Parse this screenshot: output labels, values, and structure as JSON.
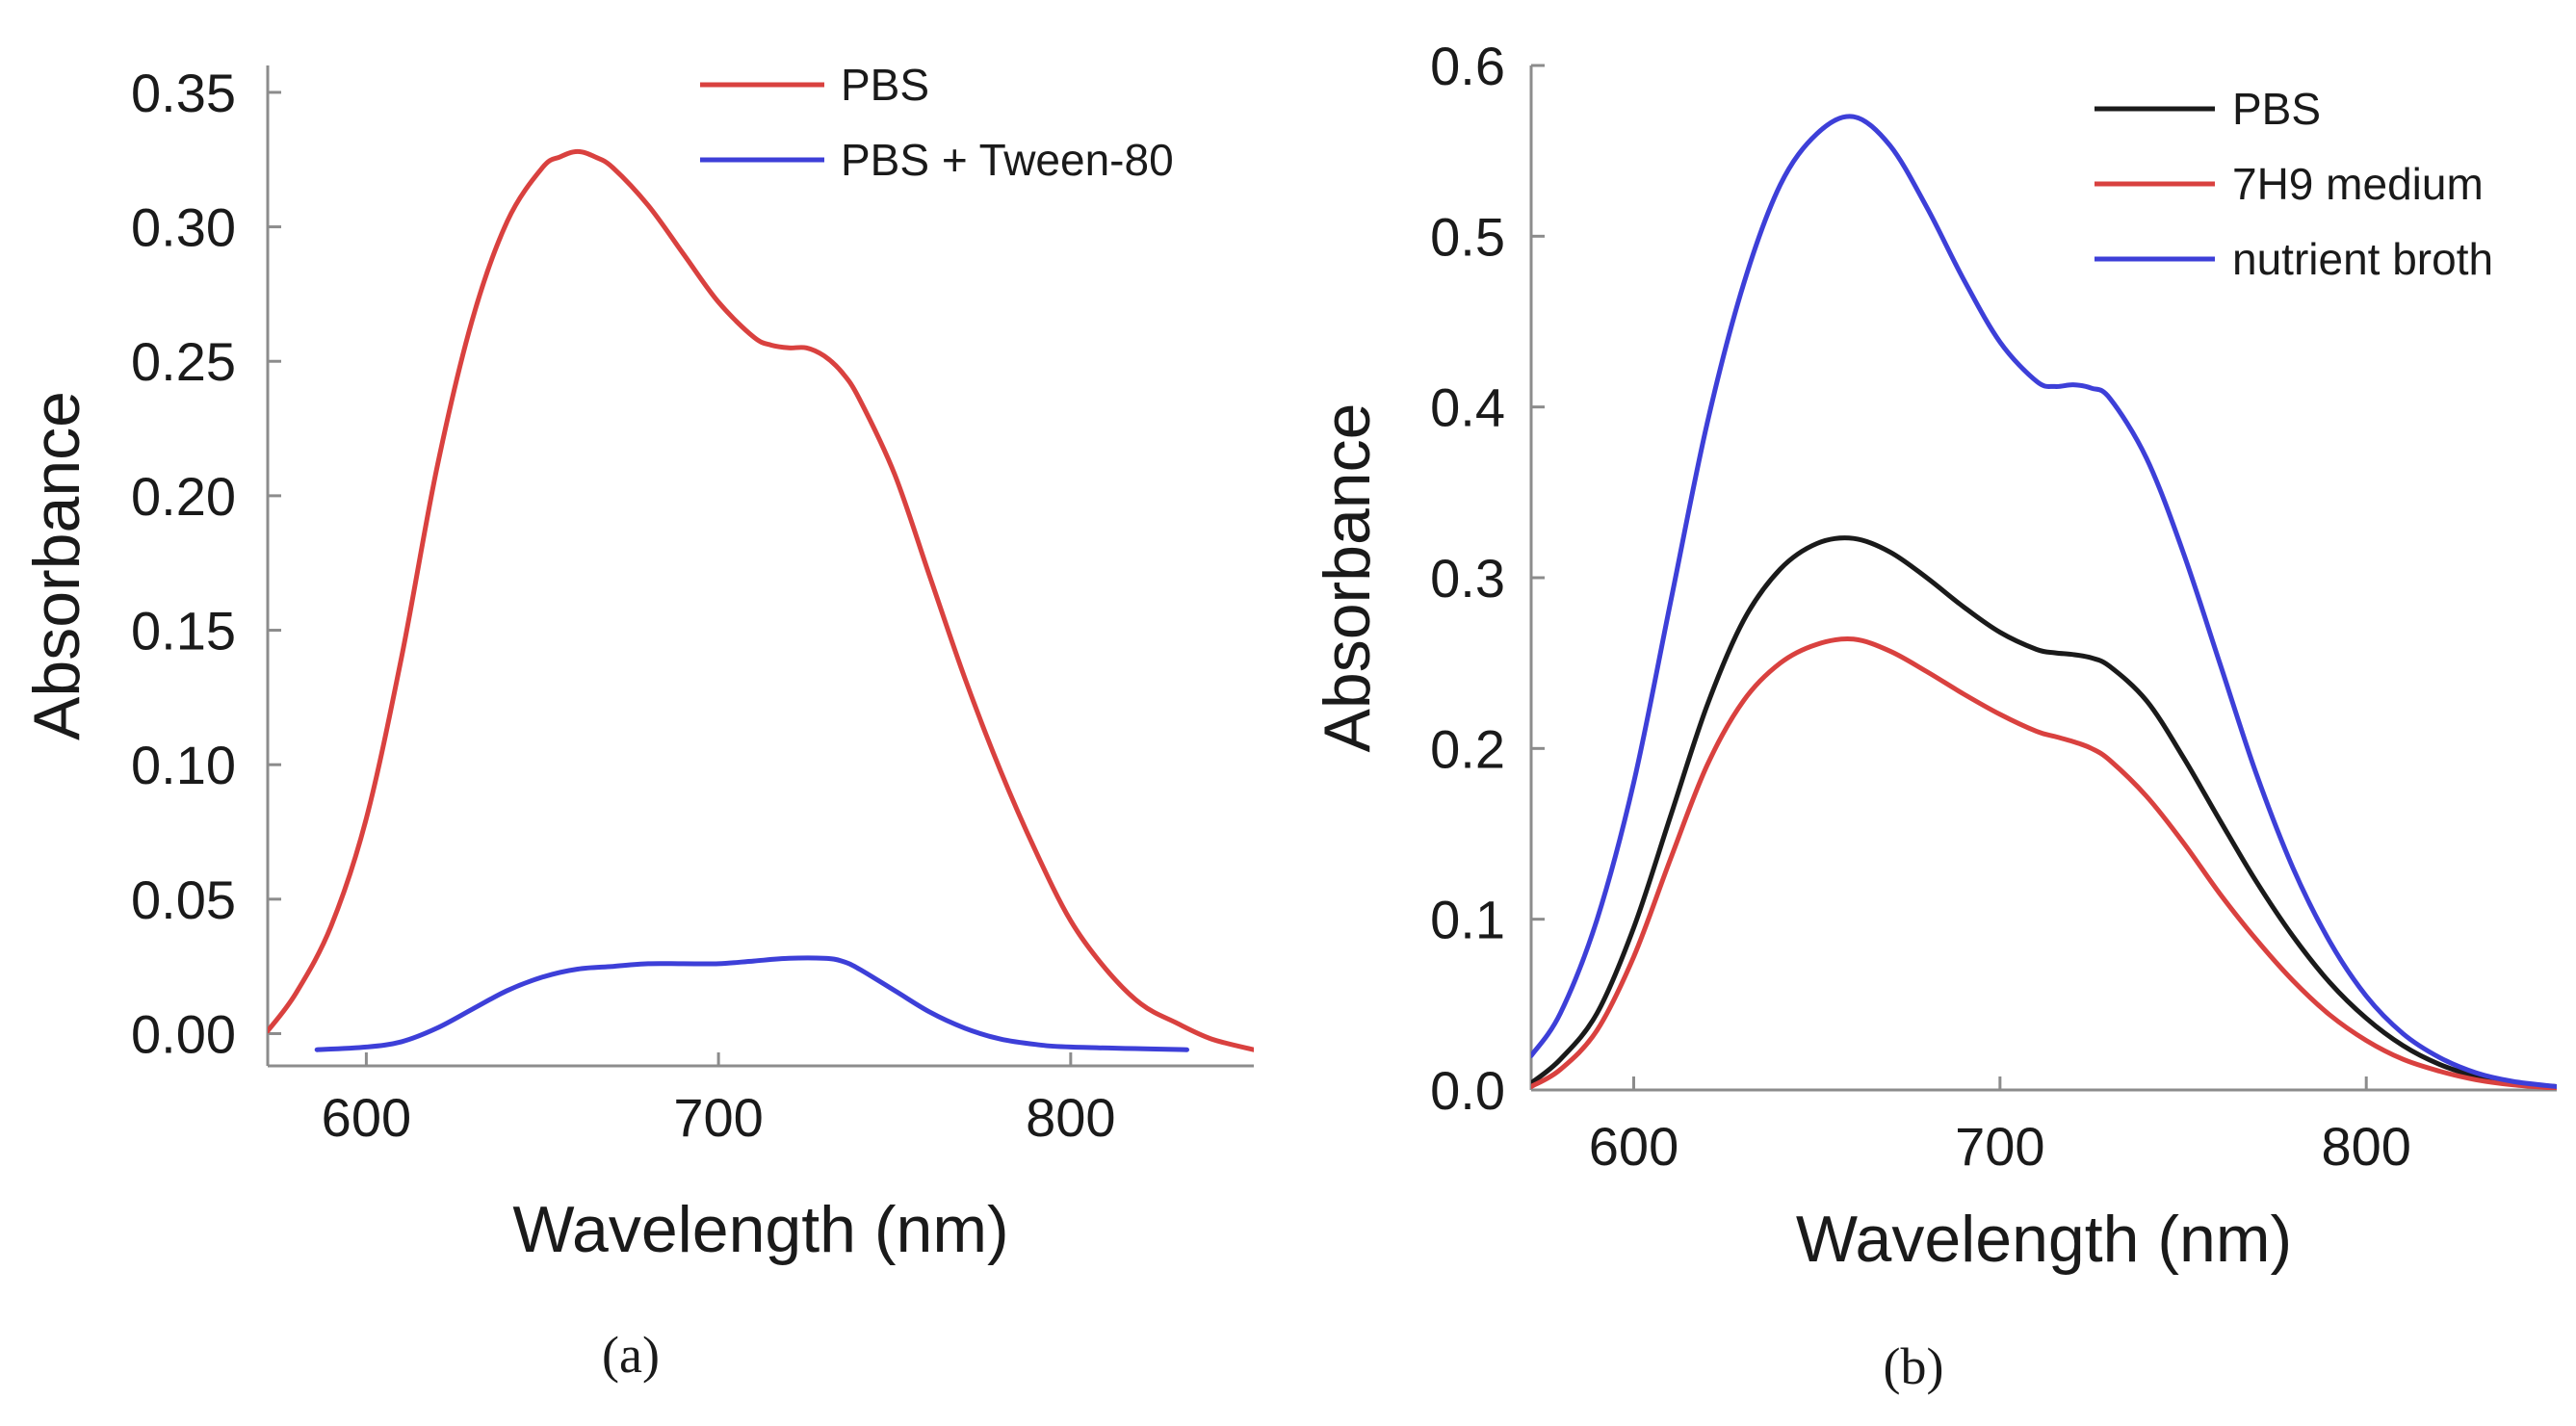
{
  "chart_data": [
    {
      "type": "line",
      "panel_label": "(a)",
      "xlabel": "Wavelength (nm)",
      "ylabel": "Absorbance",
      "xlim": [
        572,
        852
      ],
      "ylim": [
        -0.012,
        0.36
      ],
      "x_ticks": [
        600,
        700,
        800
      ],
      "y_ticks": [
        0.0,
        0.05,
        0.1,
        0.15,
        0.2,
        0.25,
        0.3,
        0.35
      ],
      "y_tick_labels": [
        "0.00",
        "0.05",
        "0.10",
        "0.15",
        "0.20",
        "0.25",
        "0.30",
        "0.35"
      ],
      "legend_position": "top-right",
      "series": [
        {
          "name": "PBS",
          "color": "#d9413f",
          "x": [
            572,
            580,
            590,
            600,
            610,
            620,
            630,
            640,
            650,
            655,
            660,
            665,
            670,
            680,
            690,
            700,
            710,
            715,
            720,
            725,
            730,
            735,
            740,
            750,
            760,
            770,
            780,
            790,
            800,
            810,
            820,
            830,
            840,
            852
          ],
          "y": [
            0.001,
            0.015,
            0.04,
            0.08,
            0.14,
            0.21,
            0.265,
            0.302,
            0.322,
            0.326,
            0.328,
            0.326,
            0.322,
            0.308,
            0.29,
            0.272,
            0.259,
            0.256,
            0.255,
            0.255,
            0.252,
            0.246,
            0.236,
            0.208,
            0.17,
            0.132,
            0.098,
            0.068,
            0.042,
            0.024,
            0.011,
            0.004,
            -0.002,
            -0.006
          ]
        },
        {
          "name": "PBS + Tween-80",
          "color": "#3d3fd8",
          "x": [
            586,
            600,
            610,
            620,
            630,
            640,
            650,
            660,
            670,
            680,
            690,
            700,
            710,
            720,
            730,
            735,
            740,
            750,
            760,
            770,
            780,
            790,
            800,
            833
          ],
          "y": [
            -0.006,
            -0.005,
            -0.003,
            0.002,
            0.009,
            0.016,
            0.021,
            0.024,
            0.025,
            0.026,
            0.026,
            0.026,
            0.027,
            0.028,
            0.028,
            0.027,
            0.024,
            0.016,
            0.008,
            0.002,
            -0.002,
            -0.004,
            -0.005,
            -0.006
          ]
        }
      ]
    },
    {
      "type": "line",
      "panel_label": "(b)",
      "xlabel": "Wavelength (nm)",
      "ylabel": "Absorbance",
      "xlim": [
        572,
        852
      ],
      "ylim": [
        0.0,
        0.6
      ],
      "x_ticks": [
        600,
        700,
        800
      ],
      "y_ticks": [
        0.0,
        0.1,
        0.2,
        0.3,
        0.4,
        0.5,
        0.6
      ],
      "y_tick_labels": [
        "0.0",
        "0.1",
        "0.2",
        "0.3",
        "0.4",
        "0.5",
        "0.6"
      ],
      "legend_position": "top-right",
      "series": [
        {
          "name": "PBS",
          "color": "#1a1a1a",
          "x": [
            572,
            580,
            590,
            600,
            610,
            620,
            630,
            640,
            650,
            660,
            670,
            680,
            690,
            700,
            710,
            715,
            720,
            725,
            730,
            740,
            750,
            760,
            770,
            780,
            790,
            800,
            810,
            820,
            830,
            840,
            852
          ],
          "y": [
            0.004,
            0.018,
            0.045,
            0.095,
            0.16,
            0.225,
            0.275,
            0.305,
            0.32,
            0.323,
            0.315,
            0.3,
            0.283,
            0.268,
            0.258,
            0.256,
            0.255,
            0.253,
            0.248,
            0.228,
            0.195,
            0.158,
            0.122,
            0.09,
            0.063,
            0.042,
            0.026,
            0.015,
            0.008,
            0.004,
            0.002
          ]
        },
        {
          "name": "7H9 medium",
          "color": "#d9413f",
          "x": [
            572,
            580,
            590,
            600,
            610,
            620,
            630,
            640,
            650,
            660,
            670,
            680,
            690,
            700,
            710,
            715,
            720,
            725,
            730,
            740,
            750,
            760,
            770,
            780,
            790,
            800,
            810,
            820,
            830,
            840,
            852
          ],
          "y": [
            0.002,
            0.012,
            0.035,
            0.078,
            0.135,
            0.19,
            0.228,
            0.25,
            0.261,
            0.264,
            0.257,
            0.245,
            0.232,
            0.22,
            0.21,
            0.207,
            0.204,
            0.2,
            0.193,
            0.172,
            0.145,
            0.115,
            0.088,
            0.064,
            0.044,
            0.029,
            0.018,
            0.011,
            0.006,
            0.003,
            0.001
          ]
        },
        {
          "name": "nutrient broth",
          "color": "#3d3fd8",
          "x": [
            572,
            580,
            590,
            600,
            610,
            620,
            630,
            640,
            650,
            660,
            670,
            680,
            690,
            700,
            710,
            715,
            720,
            725,
            730,
            740,
            750,
            760,
            770,
            780,
            790,
            800,
            810,
            820,
            830,
            840,
            852
          ],
          "y": [
            0.02,
            0.045,
            0.1,
            0.18,
            0.285,
            0.39,
            0.472,
            0.53,
            0.56,
            0.57,
            0.553,
            0.517,
            0.475,
            0.438,
            0.415,
            0.412,
            0.413,
            0.411,
            0.405,
            0.37,
            0.315,
            0.25,
            0.185,
            0.13,
            0.087,
            0.055,
            0.033,
            0.019,
            0.01,
            0.005,
            0.002
          ]
        }
      ]
    }
  ]
}
